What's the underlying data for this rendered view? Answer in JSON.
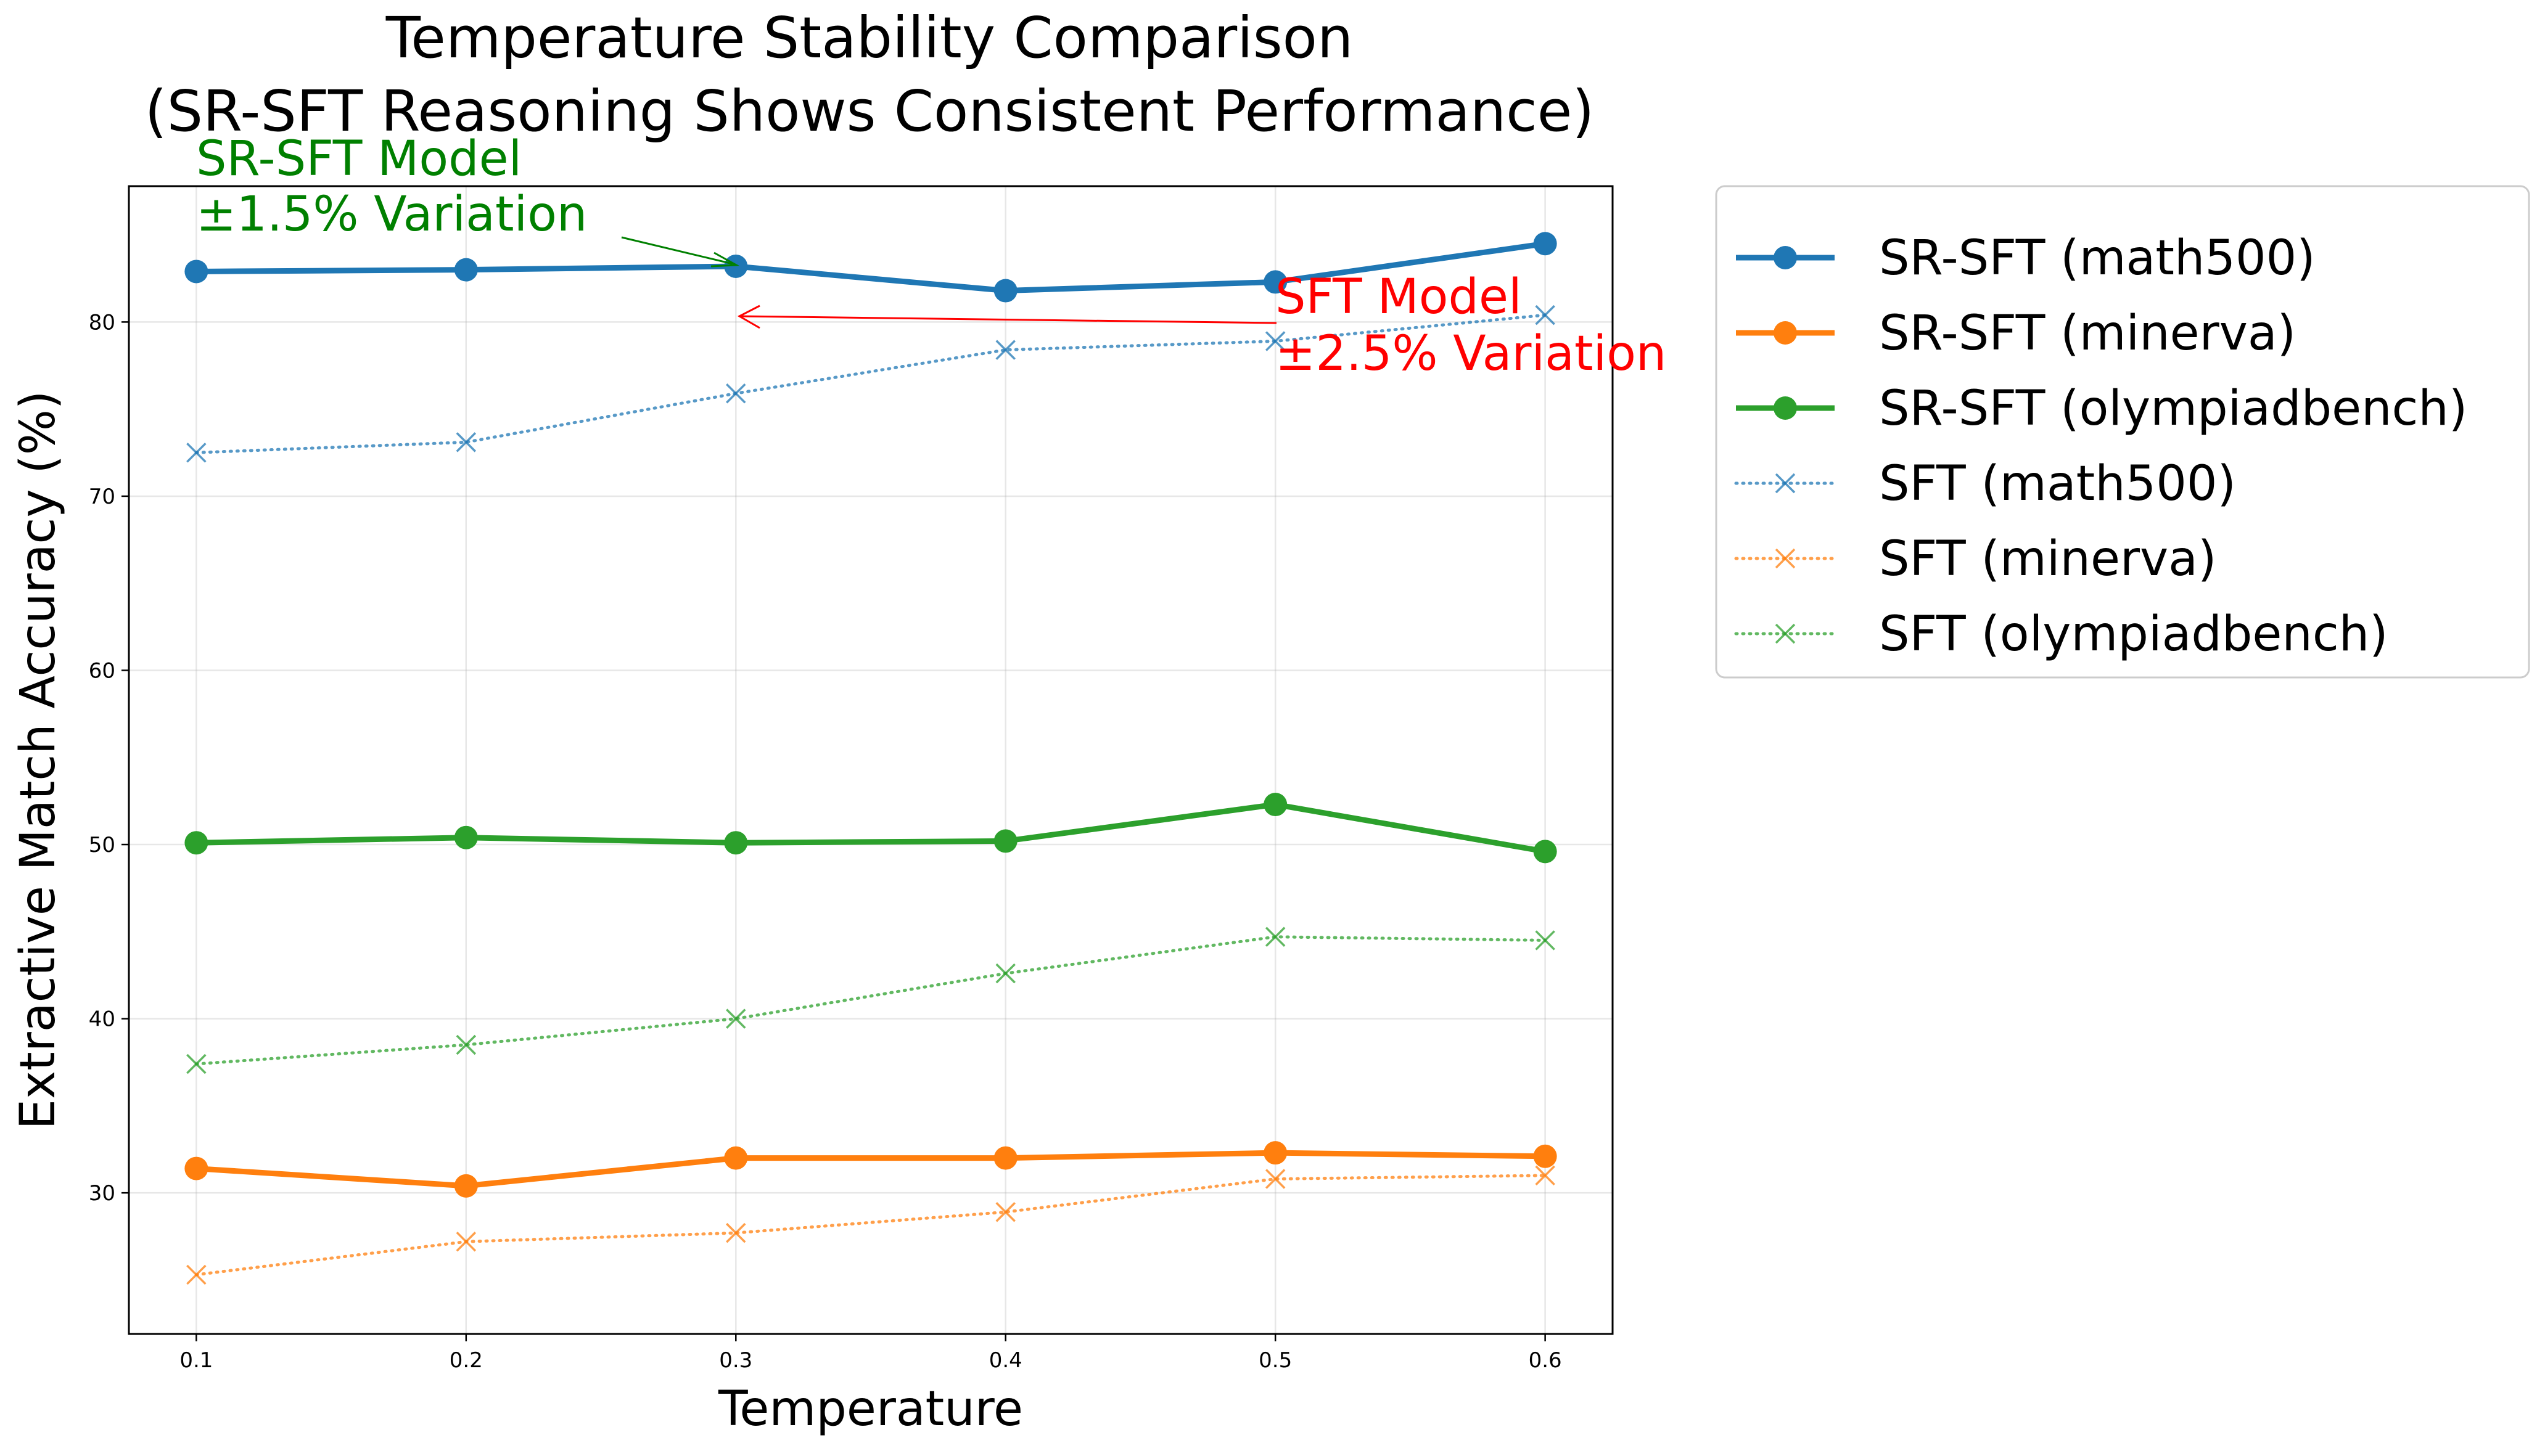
{
  "chart_data": {
    "type": "line",
    "title_line1": "Temperature Stability Comparison",
    "title_line2": "(SR-SFT Reasoning Shows Consistent Performance)",
    "xlabel": "Temperature",
    "ylabel": "Extractive Match Accuracy (%)",
    "x": [
      0.1,
      0.2,
      0.3,
      0.4,
      0.5,
      0.6
    ],
    "x_tick_labels": [
      "0.1",
      "0.2",
      "0.3",
      "0.4",
      "0.5",
      "0.6"
    ],
    "xlim": [
      0.075,
      0.625
    ],
    "ylim": [
      21.9,
      87.8
    ],
    "y_ticks": [
      30,
      40,
      50,
      60,
      70,
      80
    ],
    "y_tick_labels": [
      "30",
      "40",
      "50",
      "60",
      "70",
      "80"
    ],
    "grid": true,
    "legend_position": "outside-right",
    "series": [
      {
        "name": "SR-SFT (math500)",
        "style": "solid",
        "marker": "circle",
        "color": "#1f77b4",
        "values": [
          82.9,
          83.0,
          83.2,
          81.8,
          82.3,
          84.5
        ]
      },
      {
        "name": "SR-SFT (minerva)",
        "style": "solid",
        "marker": "circle",
        "color": "#ff7f0e",
        "values": [
          31.4,
          30.4,
          32.0,
          32.0,
          32.3,
          32.1
        ]
      },
      {
        "name": "SR-SFT (olympiadbench)",
        "style": "solid",
        "marker": "circle",
        "color": "#2ca02c",
        "values": [
          50.1,
          50.4,
          50.1,
          50.2,
          52.3,
          49.6
        ]
      },
      {
        "name": "SFT (math500)",
        "style": "dotted",
        "marker": "x",
        "color": "#1f77b4",
        "values": [
          72.5,
          73.1,
          75.9,
          78.4,
          78.9,
          80.4
        ]
      },
      {
        "name": "SFT (minerva)",
        "style": "dotted",
        "marker": "x",
        "color": "#ff7f0e",
        "values": [
          25.3,
          27.2,
          27.7,
          28.9,
          30.8,
          31.0
        ]
      },
      {
        "name": "SFT (olympiadbench)",
        "style": "dotted",
        "marker": "x",
        "color": "#2ca02c",
        "values": [
          37.4,
          38.5,
          40.0,
          42.6,
          44.7,
          44.5
        ]
      }
    ],
    "annotations": [
      {
        "id": "srsft",
        "line1": "SR-SFT Model",
        "line2": "±1.5% Variation",
        "color": "#008000",
        "arrow_target": [
          0.3,
          83.2
        ]
      },
      {
        "id": "sft",
        "line1": "SFT Model",
        "line2": "±2.5% Variation",
        "color": "#ff0000",
        "arrow_target": [
          0.3,
          80.0
        ]
      }
    ]
  }
}
